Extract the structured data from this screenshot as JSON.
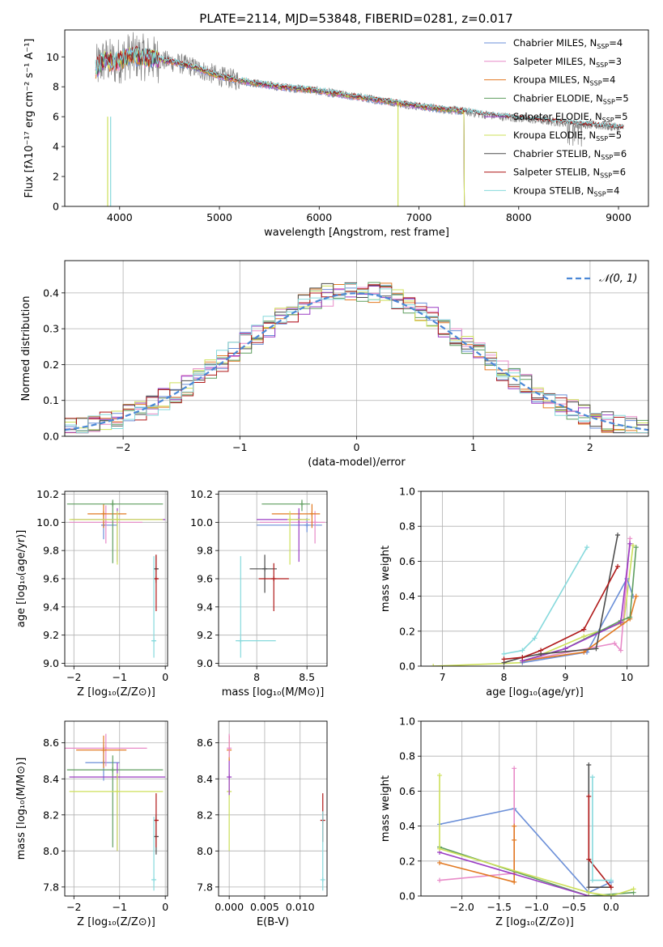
{
  "title": "PLATE=2114, MJD=53848, FIBERID=0281, z=0.017",
  "colors": {
    "Chabrier MILES": "#6b8fd8",
    "Salpeter MILES": "#e88bc8",
    "Kroupa MILES": "#e27a23",
    "Chabrier ELODIE": "#5f9e5f",
    "Salpeter ELODIE": "#9a3cc4",
    "Kroupa ELODIE": "#cde05a",
    "Chabrier STELIB": "#4d4d4d",
    "Salpeter STELIB": "#b01a1a",
    "Kroupa STELIB": "#86d9dc",
    "data": "#808080",
    "normal": "#4a87d6"
  },
  "chart_data": [
    {
      "id": "spectrum",
      "type": "line",
      "xlabel": "wavelength [Angstrom, rest frame]",
      "ylabel": "Flux [fλ10⁻¹⁷ erg cm⁻² s⁻¹ A⁻¹]",
      "xlim": [
        3450,
        9300
      ],
      "ylim": [
        0,
        11.8
      ],
      "xticks": [
        4000,
        5000,
        6000,
        7000,
        8000,
        9000
      ],
      "yticks": [
        0,
        2,
        4,
        6,
        8,
        10
      ],
      "continuum": [
        [
          3760,
          9.2
        ],
        [
          3850,
          9.8
        ],
        [
          3950,
          9.6
        ],
        [
          4100,
          10.1
        ],
        [
          4300,
          9.9
        ],
        [
          4500,
          9.7
        ],
        [
          4700,
          9.4
        ],
        [
          5000,
          8.7
        ],
        [
          5300,
          8.3
        ],
        [
          5600,
          8.0
        ],
        [
          5900,
          7.8
        ],
        [
          6200,
          7.5
        ],
        [
          6500,
          7.2
        ],
        [
          6800,
          6.9
        ],
        [
          7100,
          6.6
        ],
        [
          7400,
          6.4
        ],
        [
          7700,
          6.1
        ],
        [
          8000,
          5.9
        ],
        [
          8300,
          5.7
        ],
        [
          8600,
          5.5
        ],
        [
          8900,
          5.35
        ],
        [
          9050,
          5.25
        ]
      ],
      "data_series_name": "",
      "legend": [
        {
          "label": "Chabrier MILES, N_SSP=4",
          "text": "Chabrier MILES, N",
          "n": "4"
        },
        {
          "label": "Salpeter MILES, N_SSP=3",
          "text": "Salpeter MILES, N",
          "n": "3"
        },
        {
          "label": "Kroupa MILES, N_SSP=4",
          "text": "Kroupa MILES, N",
          "n": "4"
        },
        {
          "label": "Chabrier ELODIE, N_SSP=5",
          "text": "Chabrier ELODIE, N",
          "n": "5"
        },
        {
          "label": "Salpeter ELODIE, N_SSP=5",
          "text": "Salpeter ELODIE, N",
          "n": "5"
        },
        {
          "label": "Kroupa ELODIE, N_SSP=5",
          "text": "Kroupa ELODIE, N",
          "n": "5"
        },
        {
          "label": "Chabrier STELIB, N_SSP=6",
          "text": "Chabrier STELIB, N",
          "n": "6"
        },
        {
          "label": "Salpeter STELIB, N_SSP=6",
          "text": "Salpeter STELIB, N",
          "n": "6"
        },
        {
          "label": "Kroupa STELIB, N_SSP=4",
          "text": "Kroupa STELIB, N",
          "n": "4"
        }
      ],
      "legend_sub": "SSP",
      "legend_eq": "=",
      "legend_position": "upper right"
    },
    {
      "id": "residuals",
      "type": "histogram",
      "xlabel": "(data-model)/error",
      "ylabel": "Normed distribution",
      "xlim": [
        -2.5,
        2.5
      ],
      "ylim": [
        0,
        0.49
      ],
      "xticks": [
        -2,
        -1,
        0,
        1,
        2
      ],
      "yticks": [
        0.0,
        0.1,
        0.2,
        0.3,
        0.4
      ],
      "bin_width": 0.1,
      "legend": "𝒩(0, 1)",
      "legend_position": "upper right"
    },
    {
      "id": "age_vs_Z",
      "type": "errorbar",
      "xlabel": "Z [log₁₀(Z/Z⊙)]",
      "ylabel": "age  [log₁₀(age/yr)]",
      "xlim": [
        -2.2,
        0.05
      ],
      "ylim": [
        8.98,
        10.22
      ],
      "xticks": [
        -2,
        -1,
        0
      ],
      "yticks": [
        9.0,
        9.2,
        9.4,
        9.6,
        9.8,
        10.0,
        10.2
      ],
      "points": [
        {
          "model": "Chabrier MILES",
          "x": -1.35,
          "xerr": [
            0.05,
            0.3
          ],
          "y": 9.98,
          "yerr": [
            0.1,
            0.1
          ]
        },
        {
          "model": "Salpeter MILES",
          "x": -1.3,
          "xerr": [
            0.8,
            0.8
          ],
          "y": 10.0,
          "yerr": [
            0.15,
            0.12
          ]
        },
        {
          "model": "Kroupa MILES",
          "x": -1.35,
          "xerr": [
            0.35,
            0.5
          ],
          "y": 10.06,
          "yerr": [
            0.1,
            0.07
          ]
        },
        {
          "model": "Chabrier ELODIE",
          "x": -1.15,
          "xerr": [
            1.0,
            1.1
          ],
          "y": 10.13,
          "yerr": [
            0.42,
            0.03
          ]
        },
        {
          "model": "Salpeter ELODIE",
          "x": -1.05,
          "xerr": [
            1.0,
            1.05
          ],
          "y": 10.02,
          "yerr": [
            0.3,
            0.08
          ]
        },
        {
          "model": "Kroupa ELODIE",
          "x": -1.05,
          "xerr": [
            1.05,
            1.0
          ],
          "y": 10.02,
          "yerr": [
            0.32,
            0.06
          ]
        },
        {
          "model": "Chabrier STELIB",
          "x": -0.2,
          "xerr": [
            0.05,
            0.05
          ],
          "y": 9.67,
          "yerr": [
            0.1,
            0.1
          ]
        },
        {
          "model": "Salpeter STELIB",
          "x": -0.2,
          "xerr": [
            0.05,
            0.05
          ],
          "y": 9.6,
          "yerr": [
            0.23,
            0.17
          ]
        },
        {
          "model": "Kroupa STELIB",
          "x": -0.25,
          "xerr": [
            0.05,
            0.05
          ],
          "y": 9.16,
          "yerr": [
            0.12,
            0.6
          ]
        }
      ]
    },
    {
      "id": "age_vs_mass",
      "type": "errorbar",
      "xlabel": "mass [log₁₀(M/M⊙)]",
      "xlim": [
        7.62,
        8.7
      ],
      "ylim": [
        8.98,
        10.22
      ],
      "xticks": [
        8.0,
        8.5
      ],
      "yticks": [
        9.0,
        9.2,
        9.4,
        9.6,
        9.8,
        10.0,
        10.2
      ],
      "points": [
        {
          "model": "Chabrier MILES",
          "x": 8.5,
          "xerr": [
            0.5,
            0.15
          ],
          "y": 9.98,
          "yerr": [
            0.05,
            0.05
          ]
        },
        {
          "model": "Salpeter MILES",
          "x": 8.58,
          "xerr": [
            0.55,
            0.1
          ],
          "y": 10.0,
          "yerr": [
            0.15,
            0.08
          ]
        },
        {
          "model": "Kroupa MILES",
          "x": 8.55,
          "xerr": [
            0.4,
            0.08
          ],
          "y": 10.06,
          "yerr": [
            0.1,
            0.07
          ]
        },
        {
          "model": "Chabrier ELODIE",
          "x": 8.45,
          "xerr": [
            0.4,
            0.08
          ],
          "y": 10.13,
          "yerr": [
            0.05,
            0.03
          ]
        },
        {
          "model": "Salpeter ELODIE",
          "x": 8.42,
          "xerr": [
            0.42,
            0.08
          ],
          "y": 10.02,
          "yerr": [
            0.3,
            0.08
          ]
        },
        {
          "model": "Kroupa ELODIE",
          "x": 8.33,
          "xerr": [
            0.02,
            0.2
          ],
          "y": 10.02,
          "yerr": [
            0.32,
            0.06
          ]
        },
        {
          "model": "Chabrier STELIB",
          "x": 8.08,
          "xerr": [
            0.15,
            0.12
          ],
          "y": 9.67,
          "yerr": [
            0.17,
            0.1
          ]
        },
        {
          "model": "Salpeter STELIB",
          "x": 8.17,
          "xerr": [
            0.15,
            0.15
          ],
          "y": 9.6,
          "yerr": [
            0.23,
            0.11
          ]
        },
        {
          "model": "Kroupa STELIB",
          "x": 7.84,
          "xerr": [
            0.05,
            0.35
          ],
          "y": 9.16,
          "yerr": [
            0.12,
            0.6
          ]
        }
      ]
    },
    {
      "id": "weight_vs_age",
      "type": "line",
      "xlabel": "age  [log₁₀(age/yr)]",
      "ylabel": "mass weight",
      "xlim": [
        6.65,
        10.35
      ],
      "ylim": [
        0,
        1
      ],
      "xticks": [
        7,
        8,
        9,
        10
      ],
      "yticks": [
        0.0,
        0.2,
        0.4,
        0.6,
        0.8,
        1.0
      ],
      "series": [
        {
          "model": "Kroupa ELODIE",
          "x": [
            6.85,
            8.3,
            9.3,
            9.95,
            10.1
          ],
          "y": [
            0.0,
            0.02,
            0.17,
            0.25,
            0.69
          ]
        },
        {
          "model": "Chabrier MILES",
          "x": [
            8.3,
            9.35,
            10.0,
            10.1
          ],
          "y": [
            0.02,
            0.08,
            0.5,
            0.4
          ]
        },
        {
          "model": "Salpeter MILES",
          "x": [
            8.3,
            9.8,
            9.9,
            10.05
          ],
          "y": [
            0.03,
            0.13,
            0.09,
            0.73
          ]
        },
        {
          "model": "Kroupa MILES",
          "x": [
            8.3,
            9.3,
            10.05,
            10.15
          ],
          "y": [
            0.03,
            0.08,
            0.27,
            0.4
          ]
        },
        {
          "model": "Chabrier ELODIE",
          "x": [
            8.3,
            9.0,
            9.9,
            10.05,
            10.15
          ],
          "y": [
            0.03,
            0.1,
            0.26,
            0.28,
            0.68
          ]
        },
        {
          "model": "Salpeter ELODIE",
          "x": [
            8.3,
            9.0,
            9.9,
            10.05
          ],
          "y": [
            0.03,
            0.1,
            0.25,
            0.7
          ]
        },
        {
          "model": "Chabrier STELIB",
          "x": [
            8.0,
            8.3,
            8.6,
            9.5,
            9.85
          ],
          "y": [
            0.02,
            0.05,
            0.07,
            0.1,
            0.75
          ]
        },
        {
          "model": "Salpeter STELIB",
          "x": [
            8.0,
            8.3,
            8.6,
            9.3,
            9.85
          ],
          "y": [
            0.04,
            0.05,
            0.09,
            0.21,
            0.57
          ]
        },
        {
          "model": "Kroupa STELIB",
          "x": [
            8.0,
            8.3,
            8.5,
            9.35
          ],
          "y": [
            0.07,
            0.09,
            0.16,
            0.68
          ]
        }
      ]
    },
    {
      "id": "mass_vs_Z",
      "type": "errorbar",
      "xlabel": "Z [log₁₀(Z/Z⊙)]",
      "ylabel": "mass [log₁₀(M/M⊙)]",
      "xlim": [
        -2.2,
        0.05
      ],
      "ylim": [
        7.75,
        8.72
      ],
      "xticks": [
        -2,
        -1,
        0
      ],
      "yticks": [
        7.8,
        8.0,
        8.2,
        8.4,
        8.6
      ],
      "points": [
        {
          "model": "Chabrier MILES",
          "x": -1.35,
          "xerr": [
            0.4,
            0.35
          ],
          "y": 8.49,
          "yerr": [
            0.1,
            0.1
          ]
        },
        {
          "model": "Salpeter MILES",
          "x": -1.3,
          "xerr": [
            0.9,
            0.9
          ],
          "y": 8.57,
          "yerr": [
            0.1,
            0.08
          ]
        },
        {
          "model": "Kroupa MILES",
          "x": -1.35,
          "xerr": [
            0.6,
            0.5
          ],
          "y": 8.56,
          "yerr": [
            0.1,
            0.08
          ]
        },
        {
          "model": "Chabrier ELODIE",
          "x": -1.15,
          "xerr": [
            1.0,
            1.1
          ],
          "y": 8.45,
          "yerr": [
            0.43,
            0.08
          ]
        },
        {
          "model": "Salpeter ELODIE",
          "x": -1.05,
          "xerr": [
            1.05,
            1.05
          ],
          "y": 8.41,
          "yerr": [
            0.41,
            0.08
          ]
        },
        {
          "model": "Kroupa ELODIE",
          "x": -1.05,
          "xerr": [
            1.05,
            1.0
          ],
          "y": 8.33,
          "yerr": [
            0.33,
            0.1
          ]
        },
        {
          "model": "Chabrier STELIB",
          "x": -0.2,
          "xerr": [
            0.05,
            0.05
          ],
          "y": 8.08,
          "yerr": [
            0.1,
            0.12
          ]
        },
        {
          "model": "Salpeter STELIB",
          "x": -0.2,
          "xerr": [
            0.05,
            0.05
          ],
          "y": 8.17,
          "yerr": [
            0.15,
            0.15
          ]
        },
        {
          "model": "Kroupa STELIB",
          "x": -0.25,
          "xerr": [
            0.05,
            0.05
          ],
          "y": 7.84,
          "yerr": [
            0.06,
            0.35
          ]
        }
      ]
    },
    {
      "id": "mass_vs_EBV",
      "type": "errorbar",
      "xlabel": "E(B-V)",
      "xlim": [
        -0.0015,
        0.0138
      ],
      "ylim": [
        7.75,
        8.72
      ],
      "xticks": [
        0.0,
        0.005,
        0.01
      ],
      "xticklabels": [
        "0.000",
        "0.005",
        "0.010"
      ],
      "yticks": [
        7.8,
        8.0,
        8.2,
        8.4,
        8.6
      ],
      "points": [
        {
          "model": "Kroupa ELODIE",
          "x": 0.0,
          "y": 8.33,
          "yerr": [
            0.33,
            0.1
          ]
        },
        {
          "model": "Salpeter ELODIE",
          "x": 0.0,
          "y": 8.41,
          "yerr": [
            0.1,
            0.1
          ]
        },
        {
          "model": "Kroupa MILES",
          "x": 0.0,
          "y": 8.56,
          "yerr": [
            0.06,
            0.08
          ]
        },
        {
          "model": "Salpeter MILES",
          "x": 0.0,
          "y": 8.57,
          "yerr": [
            0.05,
            0.08
          ]
        },
        {
          "model": "Salpeter STELIB",
          "x": 0.0132,
          "y": 8.17,
          "yerr": [
            0.12,
            0.15
          ]
        },
        {
          "model": "Kroupa STELIB",
          "x": 0.0132,
          "y": 7.84,
          "yerr": [
            0.06,
            0.38
          ]
        }
      ]
    },
    {
      "id": "weight_vs_Z",
      "type": "line",
      "xlabel": "Z [log₁₀(Z/Z⊙)]",
      "ylabel": "mass weight",
      "xlim": [
        -2.55,
        0.5
      ],
      "ylim": [
        0,
        1
      ],
      "xticks": [
        -2.0,
        -1.5,
        -1.0,
        -0.5,
        0.0
      ],
      "xticklabels": [
        "−2.0",
        "−1.5",
        "−1.0",
        "−0.5",
        "0.0"
      ],
      "yticks": [
        0.0,
        0.2,
        0.4,
        0.6,
        0.8,
        1.0
      ],
      "series": [
        {
          "model": "Chabrier MILES",
          "x": [
            -2.3,
            -1.3,
            -0.3,
            0.0
          ],
          "y": [
            0.41,
            0.5,
            0.02,
            0.08
          ]
        },
        {
          "model": "Salpeter MILES",
          "x": [
            -2.3,
            -1.3,
            -1.3
          ],
          "y": [
            0.09,
            0.13,
            0.73
          ]
        },
        {
          "model": "Kroupa MILES",
          "x": [
            -2.3,
            -1.3,
            -1.3,
            -1.3
          ],
          "y": [
            0.19,
            0.08,
            0.32,
            0.4
          ]
        },
        {
          "model": "Chabrier ELODIE",
          "x": [
            -2.3,
            -0.3,
            0.3
          ],
          "y": [
            0.28,
            0.0,
            0.02
          ]
        },
        {
          "model": "Salpeter ELODIE",
          "x": [
            -2.3,
            -0.3
          ],
          "y": [
            0.25,
            0.0
          ]
        },
        {
          "model": "Kroupa ELODIE",
          "x": [
            -2.3,
            -2.3,
            -0.3,
            0.0,
            0.3
          ],
          "y": [
            0.69,
            0.27,
            0.02,
            0.0,
            0.04
          ]
        },
        {
          "model": "Chabrier STELIB",
          "x": [
            -0.3,
            -0.3,
            0.0
          ],
          "y": [
            0.75,
            0.05,
            0.05
          ]
        },
        {
          "model": "Salpeter STELIB",
          "x": [
            -0.3,
            -0.3,
            0.0
          ],
          "y": [
            0.57,
            0.21,
            0.05
          ]
        },
        {
          "model": "Kroupa STELIB",
          "x": [
            -0.25,
            -0.25,
            0.0
          ],
          "y": [
            0.68,
            0.09,
            0.09
          ]
        }
      ]
    }
  ]
}
